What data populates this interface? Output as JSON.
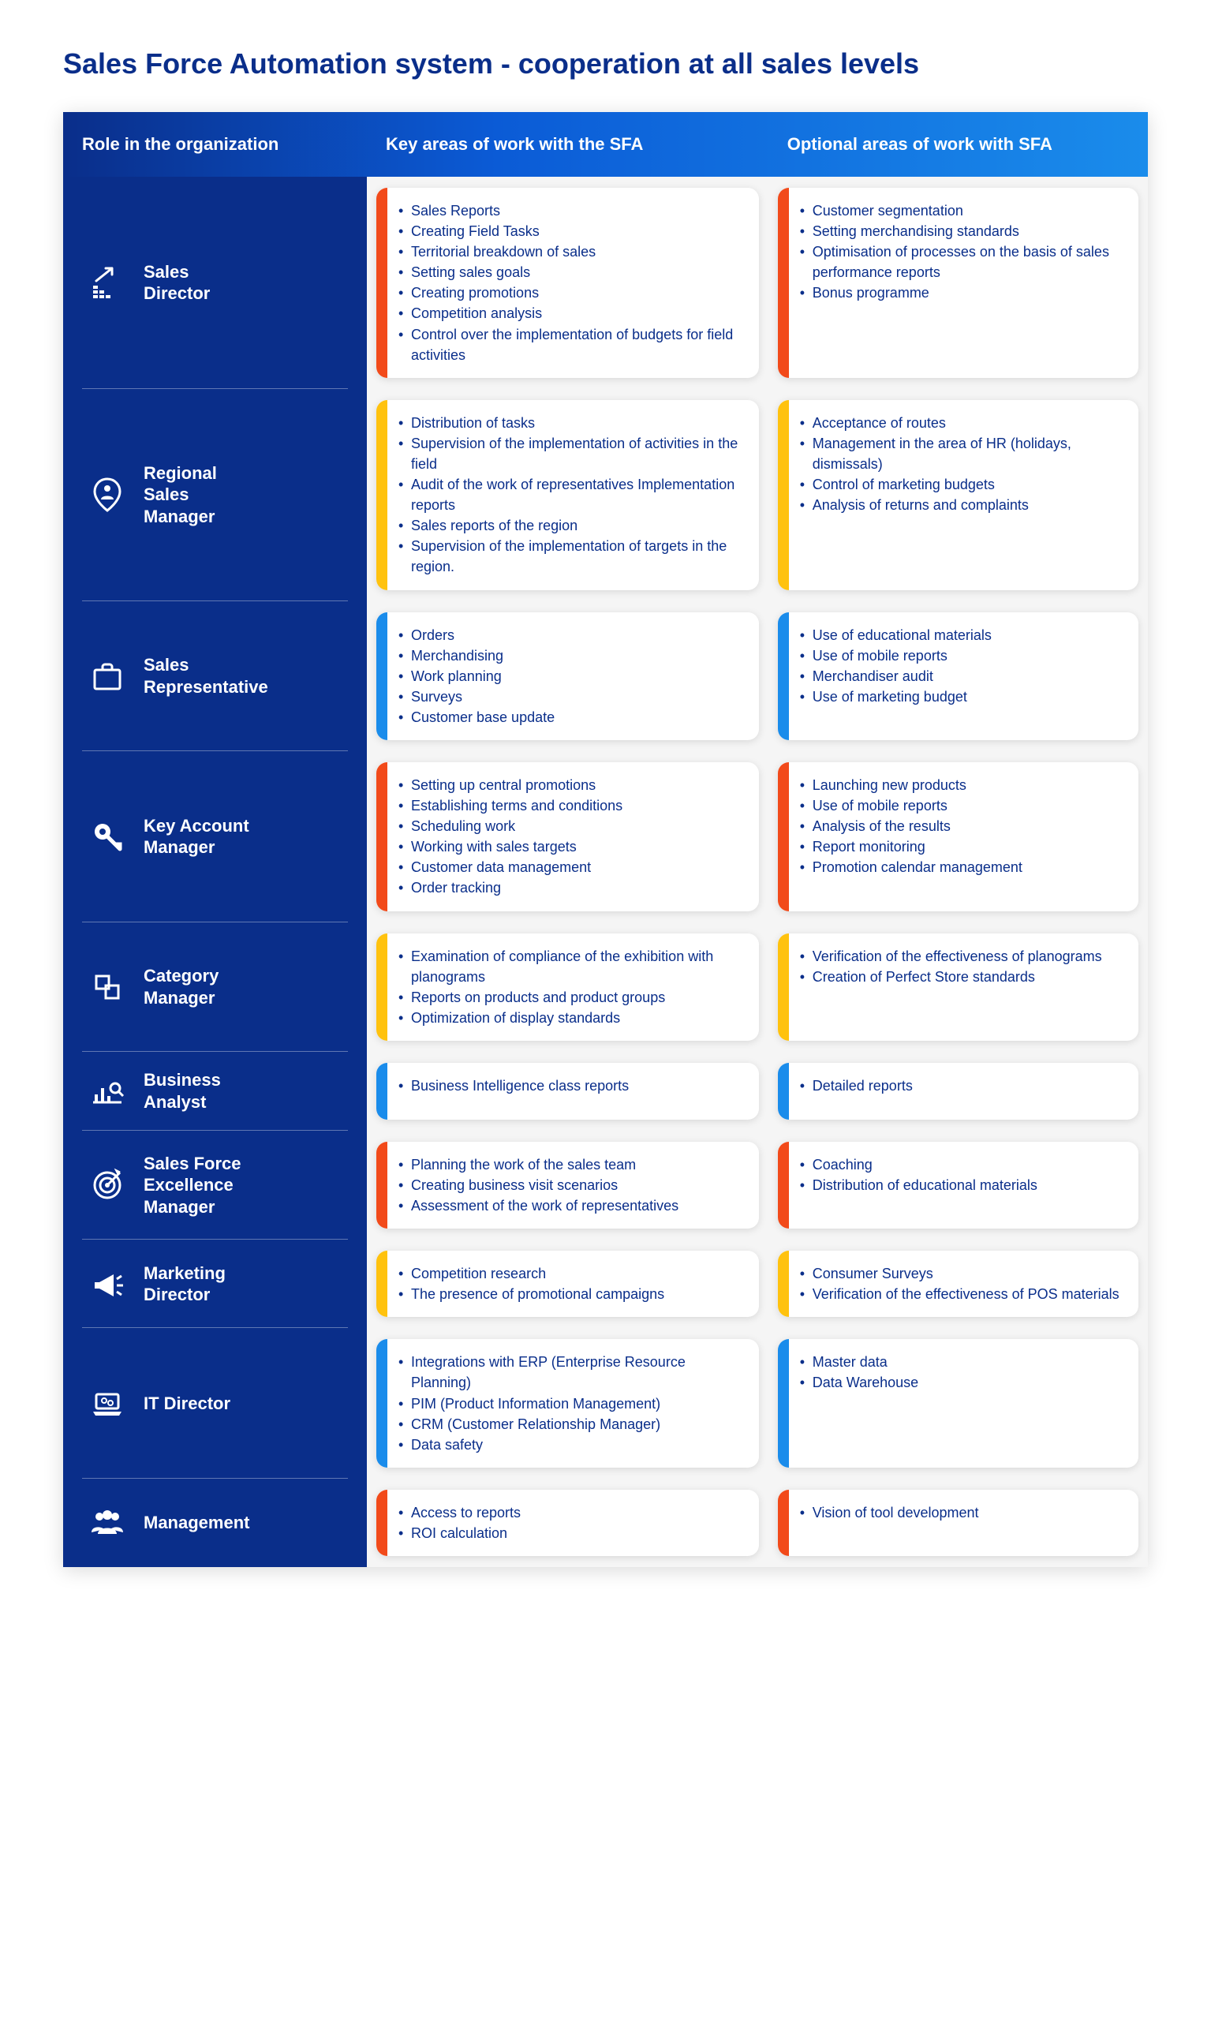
{
  "title": "Sales Force Automation system - cooperation at all sales levels",
  "headers": {
    "role": "Role in the organization",
    "key": "Key areas of work with the SFA",
    "opt": "Optional areas of work with SFA"
  },
  "colors": {
    "brand_blue": "#0a2e8a",
    "stripe_orange": "#f24a1a",
    "stripe_yellow": "#ffc20e",
    "stripe_blue": "#1a8ceb",
    "card_bg": "#ffffff",
    "page_bg": "#f5f5f5",
    "text": "#0a2e8a"
  },
  "rows": [
    {
      "icon": "coins-arrow",
      "role": "Sales Director",
      "key_stripe": "#f24a1a",
      "opt_stripe": "#f24a1a",
      "key": [
        "Sales Reports",
        "Creating Field Tasks",
        "Territorial breakdown of sales",
        "Setting sales goals",
        "Creating promotions",
        "Competition analysis",
        "Control over the implementation of budgets for field activities"
      ],
      "opt": [
        "Customer segmentation",
        "Setting merchandising standards",
        "Optimisation of processes on the basis of sales performance reports",
        "Bonus programme"
      ]
    },
    {
      "icon": "map-pin-person",
      "role": "Regional Sales Manager",
      "key_stripe": "#ffc20e",
      "opt_stripe": "#ffc20e",
      "key": [
        "Distribution of tasks",
        "Supervision of the implementation of activities in the field",
        "Audit of the work of representatives Implementation reports",
        "Sales reports of the region",
        "Supervision of the implementation of targets in the region."
      ],
      "opt": [
        "Acceptance of routes",
        "Management in the area of HR (holidays, dismissals)",
        "Control of marketing budgets",
        "Analysis of returns and complaints"
      ]
    },
    {
      "icon": "briefcase",
      "role": "Sales Representative",
      "key_stripe": "#1a8ceb",
      "opt_stripe": "#1a8ceb",
      "key": [
        "Orders",
        "Merchandising",
        "Work planning",
        "Surveys",
        "Customer base update"
      ],
      "opt": [
        "Use of educational materials",
        "Use of mobile reports",
        "Merchandiser audit",
        "Use of marketing budget"
      ]
    },
    {
      "icon": "key",
      "role": "Key Account Manager",
      "key_stripe": "#f24a1a",
      "opt_stripe": "#f24a1a",
      "key": [
        "Setting up central promotions",
        "Establishing terms and conditions",
        "Scheduling work",
        "Working with sales targets",
        "Customer data management",
        "Order tracking"
      ],
      "opt": [
        "Launching new products",
        "Use of mobile reports",
        "Analysis of the results",
        "Report monitoring",
        "Promotion calendar management"
      ]
    },
    {
      "icon": "squares",
      "role": "Category Manager",
      "key_stripe": "#ffc20e",
      "opt_stripe": "#ffc20e",
      "key": [
        "Examination of compliance of the exhibition with planograms",
        "Reports on products and product groups",
        "Optimization of display standards"
      ],
      "opt": [
        "Verification of the effectiveness of planograms",
        "Creation of Perfect Store standards"
      ]
    },
    {
      "icon": "analyst",
      "role": "Business Analyst",
      "key_stripe": "#1a8ceb",
      "opt_stripe": "#1a8ceb",
      "key": [
        "Business Intelligence class reports"
      ],
      "opt": [
        "Detailed reports"
      ]
    },
    {
      "icon": "target",
      "role": "Sales Force Excellence Manager",
      "key_stripe": "#f24a1a",
      "opt_stripe": "#f24a1a",
      "key": [
        "Planning the work of the sales team",
        "Creating business visit scenarios",
        "Assessment of the work of representatives"
      ],
      "opt": [
        "Coaching",
        "Distribution of educational materials"
      ]
    },
    {
      "icon": "megaphone",
      "role": "Marketing Director",
      "key_stripe": "#ffc20e",
      "opt_stripe": "#ffc20e",
      "key": [
        "Competition research",
        "The presence of promotional campaigns"
      ],
      "opt": [
        "Consumer Surveys",
        "Verification of the effectiveness of POS materials"
      ]
    },
    {
      "icon": "laptop-gears",
      "role": "IT Director",
      "key_stripe": "#1a8ceb",
      "opt_stripe": "#1a8ceb",
      "key": [
        "Integrations with ERP (Enterprise Resource Planning)",
        "PIM (Product Information Management)",
        "CRM (Customer Relationship Manager)",
        "Data safety"
      ],
      "opt": [
        "Master data",
        "Data Warehouse"
      ]
    },
    {
      "icon": "people",
      "role": "Management",
      "key_stripe": "#f24a1a",
      "opt_stripe": "#f24a1a",
      "key": [
        "Access to reports",
        "ROI calculation"
      ],
      "opt": [
        "Vision of tool development"
      ]
    }
  ]
}
